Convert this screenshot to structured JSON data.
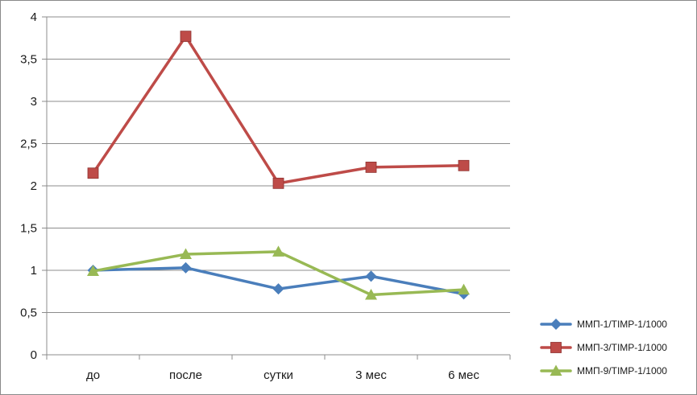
{
  "chart_data": {
    "type": "line",
    "title": "",
    "xlabel": "",
    "ylabel": "",
    "categories": [
      "до",
      "после",
      "сутки",
      "3 мес",
      "6 мес"
    ],
    "y_ticks": [
      "0",
      "0,5",
      "1",
      "1,5",
      "2",
      "2,5",
      "3",
      "3,5",
      "4"
    ],
    "ylim": [
      0,
      4
    ],
    "grid": true,
    "legend_position": "bottom-right",
    "series": [
      {
        "name": "ММП-1/TIMP-1/1000",
        "values": [
          1.0,
          1.03,
          0.78,
          0.93,
          0.72
        ],
        "color": "#4a7ebb",
        "marker": "diamond"
      },
      {
        "name": "ММП-3/TIMP-1/1000",
        "values": [
          2.15,
          3.77,
          2.03,
          2.22,
          2.24
        ],
        "color": "#be4b48",
        "marker": "square"
      },
      {
        "name": "ММП-9/TIMP-1/1000",
        "values": [
          0.99,
          1.19,
          1.22,
          0.71,
          0.77
        ],
        "color": "#98b954",
        "marker": "triangle"
      }
    ]
  }
}
